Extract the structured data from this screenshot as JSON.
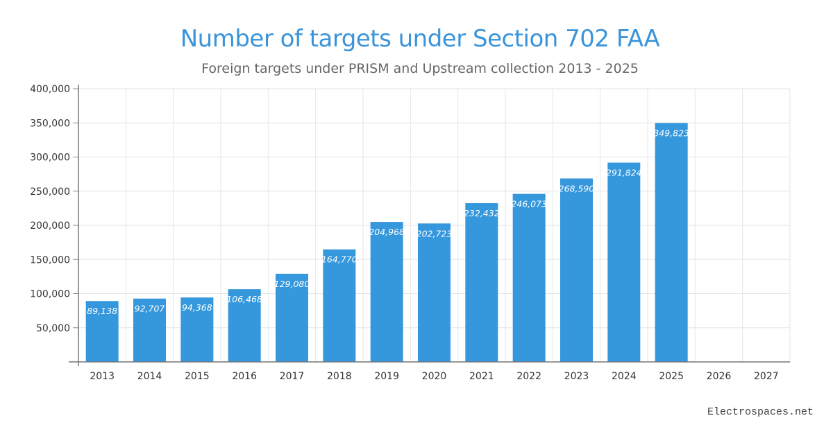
{
  "chart_data": {
    "type": "bar",
    "title": "Number of targets under Section 702 FAA",
    "subtitle": "Foreign targets under PRISM and Upstream collection 2013 - 2025",
    "categories": [
      "2013",
      "2014",
      "2015",
      "2016",
      "2017",
      "2018",
      "2019",
      "2020",
      "2021",
      "2022",
      "2023",
      "2024",
      "2025",
      "2026",
      "2027"
    ],
    "values": [
      89138,
      92707,
      94368,
      106468,
      129080,
      164770,
      204968,
      202723,
      232432,
      246073,
      268590,
      291824,
      349823,
      null,
      null
    ],
    "data_labels": [
      "89,138",
      "92,707",
      "94,368",
      "106,468",
      "129,080",
      "164,770",
      "204,968",
      "202,723",
      "232,432",
      "246,073",
      "268,590",
      "291,824",
      "349,823",
      "",
      ""
    ],
    "ylim": [
      0,
      400000
    ],
    "y_ticks": [
      50000,
      100000,
      150000,
      200000,
      250000,
      300000,
      350000,
      400000
    ],
    "y_tick_labels": [
      "50,000",
      "100,000",
      "150,000",
      "200,000",
      "250,000",
      "300,000",
      "350,000",
      "400,000"
    ],
    "xlabel": "",
    "ylabel": "",
    "grid": true,
    "bar_color": "#3597dc",
    "label_color": "#ffffff"
  },
  "credit": "Electrospaces.net"
}
